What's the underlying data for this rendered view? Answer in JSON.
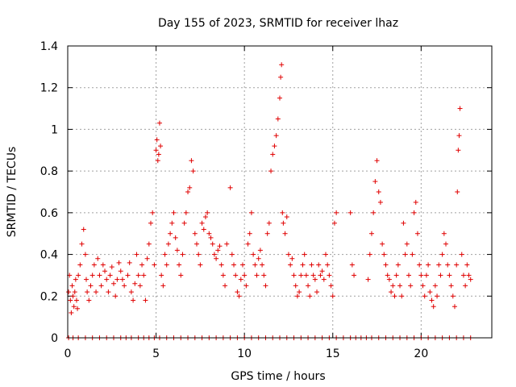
{
  "chart_data": {
    "type": "scatter",
    "title": "Day 155 of 2023, SRMTID for receiver lhaz",
    "xlabel": "GPS time / hours",
    "ylabel": "SRMTID / TECUs",
    "xlim": [
      0,
      24
    ],
    "ylim": [
      0,
      1.4
    ],
    "xticks": [
      0,
      5,
      10,
      15,
      20
    ],
    "xtick_labels": [
      "0",
      "5",
      "10",
      "15",
      "20"
    ],
    "yticks": [
      0,
      0.2,
      0.4,
      0.6,
      0.8,
      1.0,
      1.2,
      1.4
    ],
    "ytick_labels": [
      "0",
      "0.2",
      "0.4",
      "0.6",
      "0.8",
      "1",
      "1.2",
      "1.4"
    ],
    "grid": true,
    "marker": "+",
    "color": "#e00000",
    "series": [
      {
        "name": "SRMTID",
        "x": [
          0.05,
          0.1,
          0.15,
          0.2,
          0.25,
          0.3,
          0.35,
          0.4,
          0.45,
          0.5,
          0.55,
          0.6,
          0.7,
          0.8,
          0.9,
          1.0,
          1.05,
          1.1,
          1.2,
          1.3,
          1.4,
          1.5,
          1.6,
          1.7,
          1.8,
          1.9,
          2.0,
          2.1,
          2.2,
          2.3,
          2.4,
          2.5,
          2.6,
          2.7,
          2.8,
          2.9,
          3.0,
          3.1,
          3.2,
          3.4,
          3.5,
          3.6,
          3.7,
          3.8,
          3.9,
          4.0,
          4.1,
          4.2,
          4.3,
          4.4,
          4.5,
          4.6,
          4.7,
          4.8,
          4.9,
          5.0,
          5.05,
          5.1,
          5.15,
          5.2,
          5.25,
          5.3,
          5.4,
          5.5,
          5.6,
          5.7,
          5.8,
          5.9,
          6.0,
          6.1,
          6.2,
          6.3,
          6.4,
          6.5,
          6.6,
          6.7,
          6.8,
          6.9,
          7.0,
          7.1,
          7.2,
          7.3,
          7.4,
          7.5,
          7.6,
          7.7,
          7.8,
          7.9,
          8.0,
          8.1,
          8.2,
          8.3,
          8.4,
          8.5,
          8.6,
          8.7,
          8.8,
          8.9,
          9.0,
          9.2,
          9.3,
          9.4,
          9.5,
          9.6,
          9.7,
          9.8,
          9.9,
          10.0,
          10.1,
          10.2,
          10.3,
          10.4,
          10.5,
          10.6,
          10.7,
          10.8,
          10.9,
          11.0,
          11.1,
          11.2,
          11.3,
          11.4,
          11.5,
          11.6,
          11.7,
          11.8,
          11.9,
          12.0,
          12.05,
          12.1,
          12.15,
          12.2,
          12.3,
          12.4,
          12.5,
          12.6,
          12.7,
          12.8,
          12.9,
          13.0,
          13.1,
          13.2,
          13.3,
          13.4,
          13.5,
          13.6,
          13.7,
          13.8,
          13.9,
          14.0,
          14.1,
          14.2,
          14.3,
          14.4,
          14.5,
          14.6,
          14.7,
          14.8,
          14.9,
          15.0,
          15.1,
          15.2,
          16.0,
          16.1,
          16.2,
          17.0,
          17.1,
          17.2,
          17.3,
          17.4,
          17.5,
          17.6,
          17.7,
          17.8,
          17.9,
          18.0,
          18.1,
          18.2,
          18.3,
          18.4,
          18.5,
          18.6,
          18.7,
          18.8,
          18.9,
          19.0,
          19.1,
          19.2,
          19.3,
          19.4,
          19.5,
          19.6,
          19.7,
          19.8,
          19.9,
          20.0,
          20.1,
          20.2,
          20.3,
          20.4,
          20.5,
          20.6,
          20.7,
          20.8,
          20.9,
          21.0,
          21.1,
          21.2,
          21.3,
          21.4,
          21.5,
          21.6,
          21.7,
          21.8,
          21.9,
          22.0,
          22.05,
          22.1,
          22.15,
          22.2,
          22.3,
          22.4,
          22.5,
          22.6,
          22.7,
          22.8
        ],
        "y": [
          0.22,
          0.3,
          0.18,
          0.12,
          0.25,
          0.2,
          0.15,
          0.22,
          0.28,
          0.18,
          0.14,
          0.3,
          0.35,
          0.45,
          0.52,
          0.4,
          0.28,
          0.22,
          0.18,
          0.25,
          0.3,
          0.35,
          0.22,
          0.38,
          0.3,
          0.25,
          0.35,
          0.32,
          0.28,
          0.22,
          0.3,
          0.34,
          0.26,
          0.2,
          0.28,
          0.36,
          0.32,
          0.28,
          0.25,
          0.3,
          0.36,
          0.22,
          0.18,
          0.26,
          0.4,
          0.3,
          0.25,
          0.35,
          0.3,
          0.18,
          0.38,
          0.45,
          0.55,
          0.6,
          0.35,
          0.9,
          0.95,
          0.85,
          0.88,
          1.03,
          0.92,
          0.3,
          0.25,
          0.4,
          0.35,
          0.45,
          0.5,
          0.55,
          0.6,
          0.48,
          0.42,
          0.35,
          0.3,
          0.4,
          0.55,
          0.6,
          0.7,
          0.72,
          0.85,
          0.8,
          0.5,
          0.45,
          0.4,
          0.35,
          0.55,
          0.52,
          0.58,
          0.6,
          0.5,
          0.48,
          0.45,
          0.4,
          0.38,
          0.42,
          0.44,
          0.35,
          0.3,
          0.25,
          0.45,
          0.72,
          0.4,
          0.35,
          0.3,
          0.22,
          0.2,
          0.28,
          0.35,
          0.3,
          0.25,
          0.45,
          0.5,
          0.6,
          0.4,
          0.35,
          0.3,
          0.38,
          0.42,
          0.35,
          0.3,
          0.25,
          0.5,
          0.55,
          0.8,
          0.88,
          0.92,
          0.97,
          1.05,
          1.15,
          1.25,
          1.31,
          0.6,
          0.55,
          0.5,
          0.58,
          0.4,
          0.35,
          0.38,
          0.3,
          0.25,
          0.2,
          0.22,
          0.3,
          0.35,
          0.4,
          0.3,
          0.25,
          0.2,
          0.35,
          0.3,
          0.28,
          0.22,
          0.35,
          0.3,
          0.32,
          0.28,
          0.4,
          0.35,
          0.3,
          0.25,
          0.2,
          0.55,
          0.6,
          0.6,
          0.35,
          0.3,
          0.28,
          0.4,
          0.5,
          0.6,
          0.75,
          0.85,
          0.7,
          0.65,
          0.45,
          0.4,
          0.35,
          0.3,
          0.28,
          0.22,
          0.25,
          0.2,
          0.3,
          0.35,
          0.25,
          0.2,
          0.55,
          0.4,
          0.45,
          0.3,
          0.25,
          0.4,
          0.6,
          0.65,
          0.5,
          0.35,
          0.3,
          0.25,
          0.2,
          0.3,
          0.35,
          0.22,
          0.18,
          0.15,
          0.25,
          0.2,
          0.35,
          0.3,
          0.4,
          0.5,
          0.45,
          0.35,
          0.3,
          0.25,
          0.2,
          0.15,
          0.35,
          0.7,
          0.9,
          0.97,
          1.1,
          0.4,
          0.3,
          0.25,
          0.35,
          0.3,
          0.28
        ],
        "zeros_x": [
          0.05,
          0.3,
          0.6,
          1.0,
          1.4,
          1.8,
          2.2,
          2.6,
          3.0,
          3.3,
          3.6,
          4.0,
          4.3,
          4.6,
          4.9,
          5.2,
          5.6,
          6.0,
          6.4,
          6.8,
          7.2,
          7.6,
          8.0,
          8.4,
          8.8,
          9.2,
          9.6,
          10.0,
          10.4,
          10.8,
          11.2,
          11.6,
          12.0,
          12.4,
          12.8,
          13.2,
          13.6,
          14.0,
          14.4,
          14.8,
          15.2,
          15.6,
          16.0,
          16.3,
          16.6,
          16.9,
          17.2,
          17.6,
          18.0,
          18.4,
          18.8,
          19.2,
          19.6,
          20.0,
          20.4,
          20.8,
          21.2,
          21.6,
          22.0,
          22.4,
          22.8
        ]
      }
    ]
  }
}
